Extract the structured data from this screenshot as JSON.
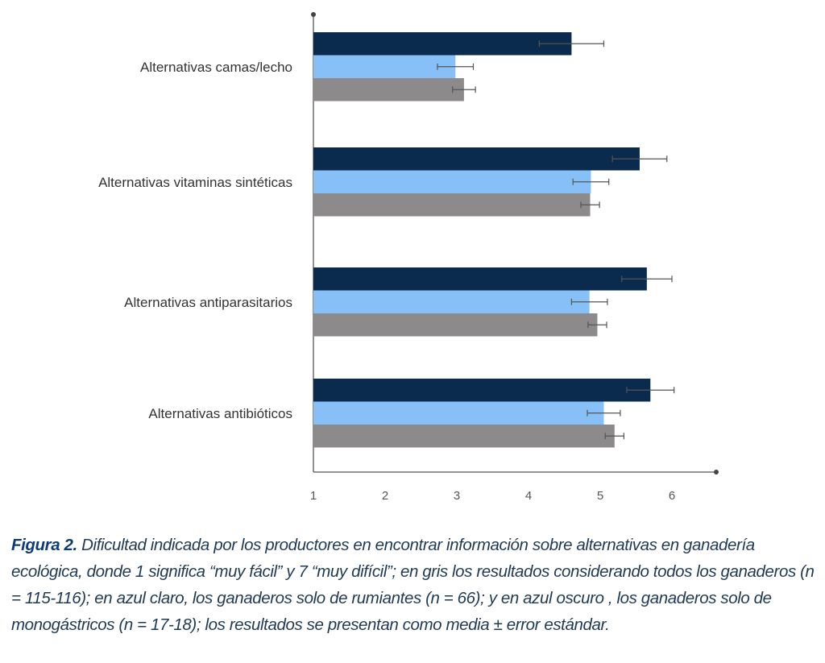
{
  "chart_data": {
    "type": "bar",
    "orientation": "horizontal",
    "categories": [
      "Alternativas camas/lecho",
      "Alternativas vitaminas sintéticas",
      "Alternativas antiparasitarios",
      "Alternativas antibióticos"
    ],
    "series": [
      {
        "values": [
          4.6,
          5.55,
          5.65,
          5.7
        ],
        "errors": [
          0.45,
          0.38,
          0.35,
          0.33
        ],
        "color": "#0a2a4e"
      },
      {
        "values": [
          2.98,
          4.87,
          4.85,
          5.05
        ],
        "errors": [
          0.25,
          0.25,
          0.25,
          0.23
        ],
        "color": "#87c0f7"
      },
      {
        "values": [
          3.1,
          4.86,
          4.96,
          5.2
        ],
        "errors": [
          0.16,
          0.13,
          0.13,
          0.13
        ],
        "color": "#8d8a8b"
      }
    ],
    "xticks": [
      "1",
      "2",
      "3",
      "4",
      "5",
      "6"
    ],
    "xlim": [
      1,
      6.65
    ],
    "grid": false,
    "error_bar_color": "#555555",
    "axis_color": "#555555"
  },
  "caption": {
    "label": "Figura 2.",
    "text": " Dificultad indicada por los productores en encontrar información sobre alternativas en ganadería ecológica, donde 1 significa “muy fácil” y 7 “muy difícil”; en gris los resultados considerando todos los ganaderos (n = 115-116); en azul claro, los ganaderos solo de rumiantes (n = 66); y en azul oscuro , los ganaderos solo de monogástricos (n = 17-18); los resultados se presentan como media ± error estándar."
  }
}
